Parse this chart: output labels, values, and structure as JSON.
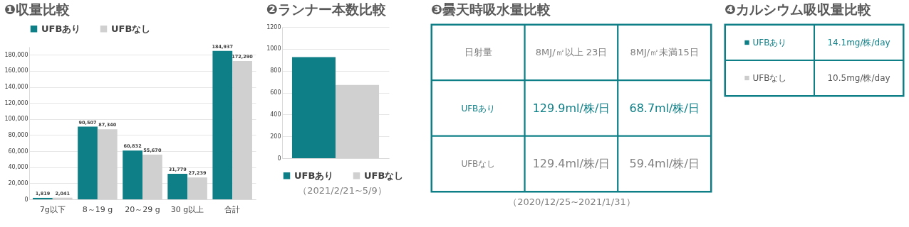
{
  "chart_data": [
    {
      "type": "bar",
      "title": "❶収量比較",
      "categories": [
        "7g以下",
        "8～19 g",
        "20～29 g",
        "30 g以上",
        "合計"
      ],
      "series": [
        {
          "name": "UFBあり",
          "color": "#0e7f87",
          "values": [
            1819,
            90507,
            60832,
            31779,
            184937
          ],
          "value_labels": [
            "1,819",
            "90,507",
            "60,832",
            "31,779",
            "184,937"
          ]
        },
        {
          "name": "UFBなし",
          "color": "#d0d0d0",
          "values": [
            2041,
            87340,
            55670,
            27239,
            172290
          ],
          "value_labels": [
            "2,041",
            "87,340",
            "55,670",
            "27,239",
            "172,290"
          ]
        }
      ],
      "ylim": [
        0,
        190000
      ],
      "yticks": [
        0,
        {
          "value": 20000,
          "label": "20,000"
        },
        {
          "value": 40000,
          "label": "40,000"
        },
        {
          "value": 60000,
          "label": "60,000"
        },
        {
          "value": 80000,
          "label": "80,000"
        },
        {
          "value": 100000,
          "label": "100,000"
        },
        {
          "value": 120000,
          "label": "120,000"
        },
        {
          "value": 140000,
          "label": "140,000"
        },
        {
          "value": 160000,
          "label": "160,000"
        },
        {
          "value": 180000,
          "label": "180,000"
        }
      ],
      "grid": "y",
      "legend": "top left"
    },
    {
      "type": "bar",
      "title": "❷ランナー本数比較",
      "categories": [
        null
      ],
      "series": [
        {
          "name": "UFBあり",
          "color": "#0e7f87",
          "values": [
            925
          ]
        },
        {
          "name": "UFBなし",
          "color": "#d0d0d0",
          "values": [
            670
          ]
        }
      ],
      "ylim": [
        0,
        1200
      ],
      "yticks": [
        0,
        200,
        400,
        600,
        800,
        1000,
        1200
      ],
      "grid": "y",
      "legend": "bottom",
      "tick_labels": "y",
      "annotations": [
        "（2021/2/21~5/9）"
      ]
    },
    {
      "type": "other",
      "title": "❸曇天時吸水量比較",
      "ylabel": "日射量",
      "categories": [
        "8MJ/㎡以上 23日",
        "8MJ/㎡未満15日"
      ],
      "y_categories": [
        "UFBあり",
        "UFBなし"
      ],
      "cell_labels": [
        [
          "129.9ml/株/日",
          "68.7ml/株/日"
        ],
        [
          "129.4ml/株/日",
          "59.4ml/株/日"
        ]
      ],
      "annotations": [
        "（2020/12/25~2021/1/31）"
      ]
    },
    {
      "type": "other",
      "title": "❹カルシウム吸収量比較",
      "y_categories": [
        "UFBあり",
        "UFBなし"
      ],
      "colors": [
        "#0e7f87",
        "#cccccc"
      ],
      "cell_labels": [
        [
          "14.1mg/株/day"
        ],
        [
          "10.5mg/株/day"
        ]
      ]
    }
  ]
}
